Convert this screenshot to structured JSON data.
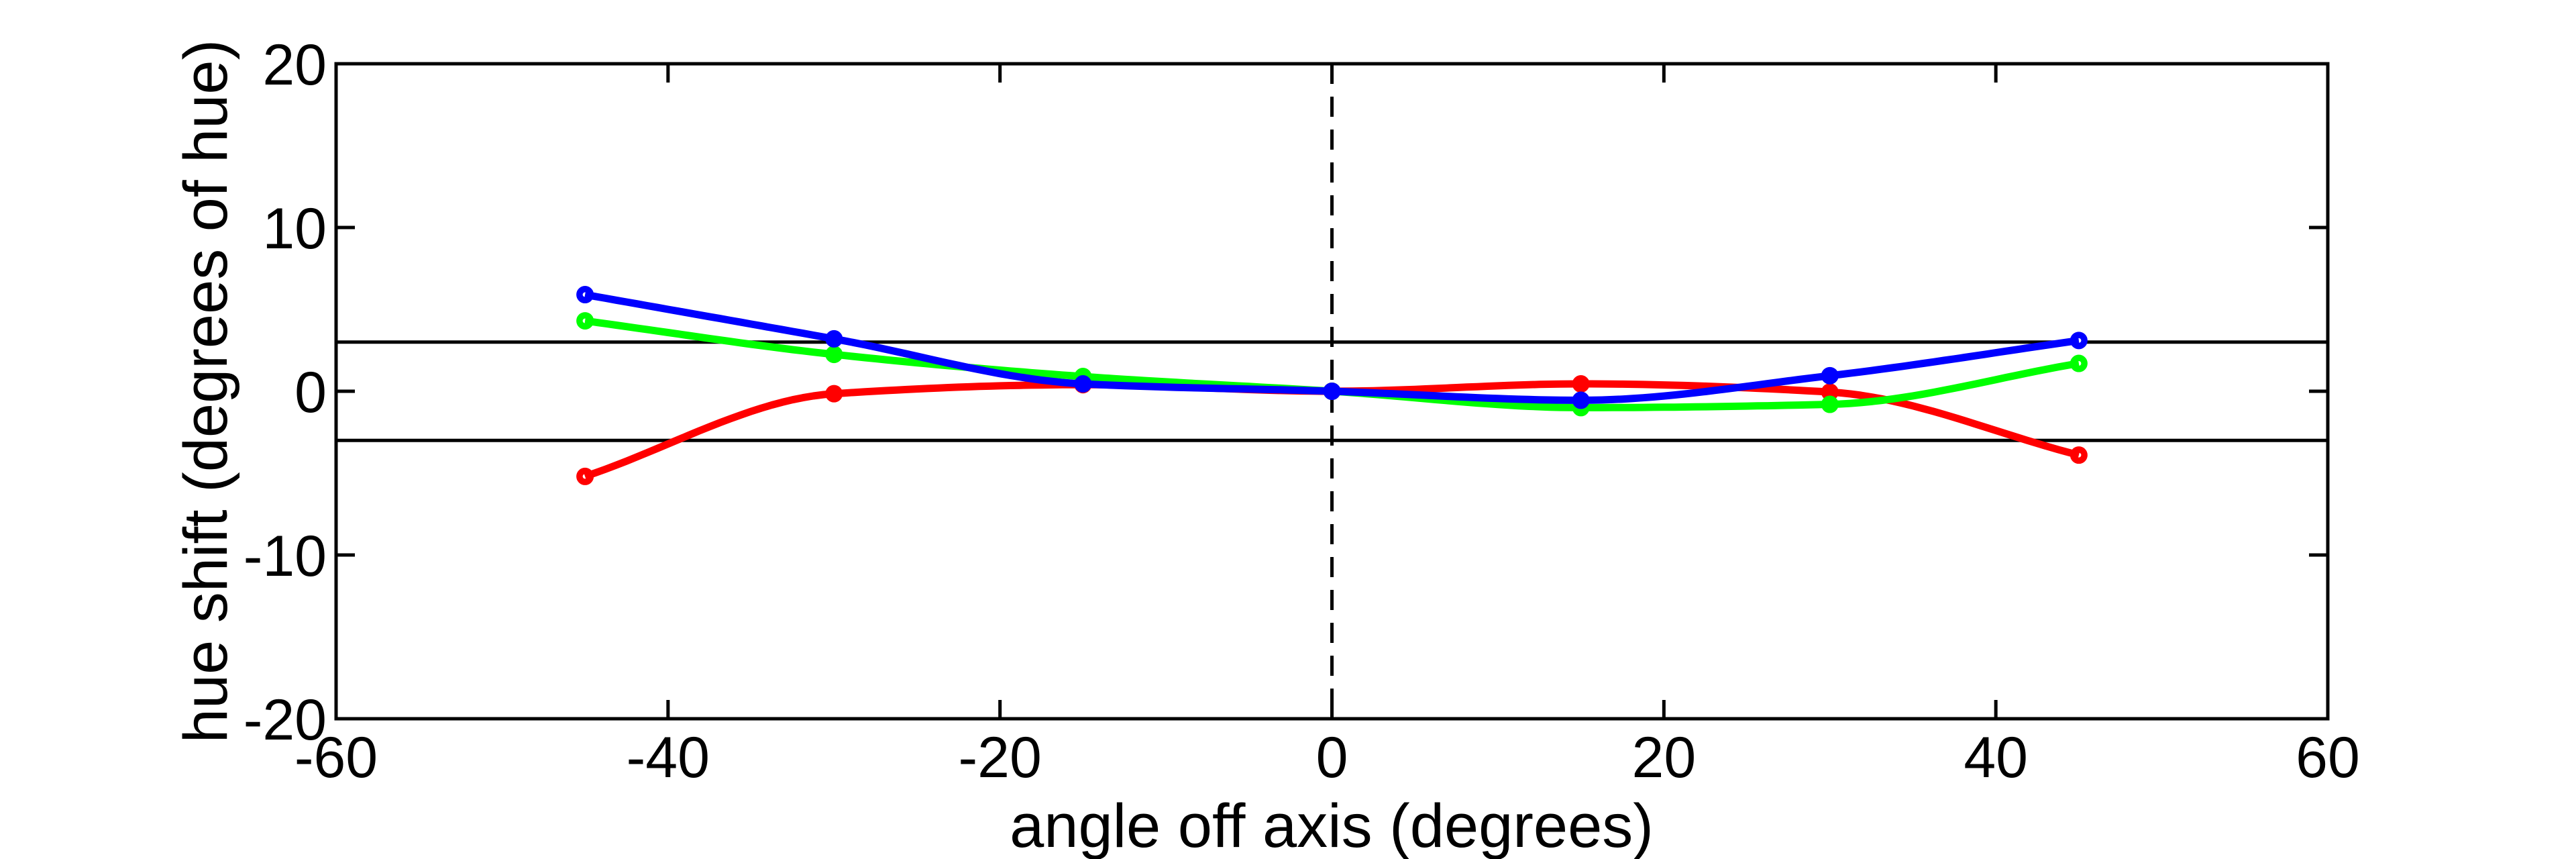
{
  "chart_data": {
    "type": "line",
    "title": "",
    "xlabel": "angle off axis (degrees)",
    "ylabel": "hue shift (degrees of hue)",
    "xlim": [
      -60,
      60
    ],
    "ylim": [
      -20,
      20
    ],
    "xticks": [
      -60,
      -40,
      -20,
      0,
      20,
      40,
      60
    ],
    "yticks": [
      -20,
      -10,
      0,
      10,
      20
    ],
    "x": [
      -45,
      -30,
      -15,
      0,
      15,
      30,
      45
    ],
    "series": [
      {
        "name": "red",
        "color": "#ff0000",
        "values": [
          -5.2,
          -0.15,
          0.4,
          0,
          0.45,
          -0.05,
          -3.9
        ]
      },
      {
        "name": "green",
        "color": "#00ff00",
        "values": [
          4.3,
          2.25,
          0.9,
          0,
          -1.0,
          -0.8,
          1.7
        ]
      },
      {
        "name": "blue",
        "color": "#0000ff",
        "values": [
          5.9,
          3.2,
          0.45,
          0,
          -0.55,
          0.95,
          3.1
        ]
      }
    ],
    "reference_lines_y": [
      3,
      -3
    ],
    "reference_line_x": 0,
    "marker": "o",
    "line_style": "solid curves through markers",
    "legend": "none",
    "grid": false,
    "background": "#ffffff",
    "axis_color": "#000000",
    "text_color": "#000000"
  }
}
